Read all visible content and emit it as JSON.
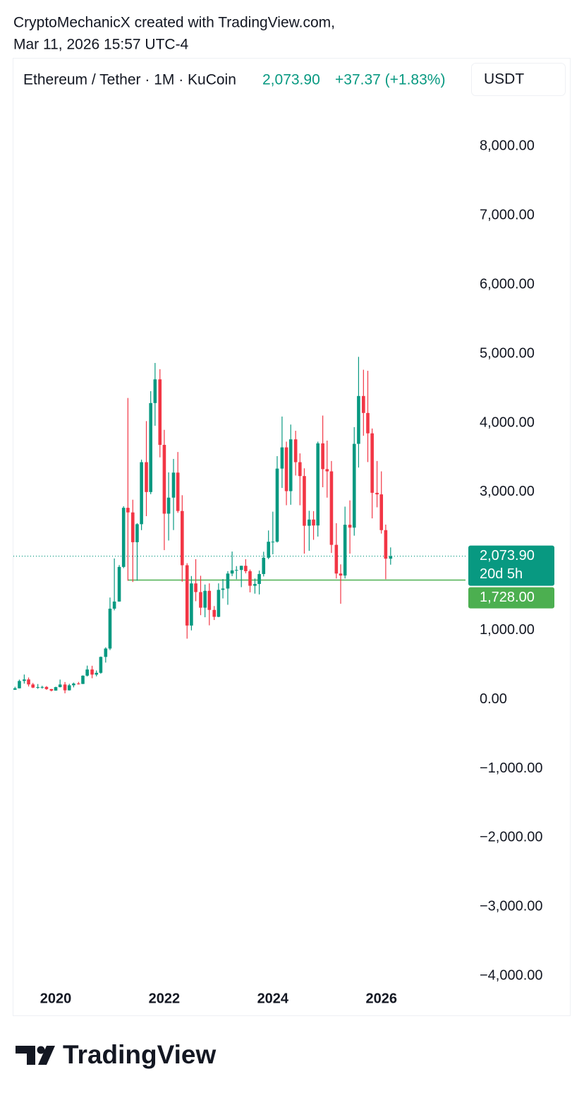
{
  "chart_data": {
    "type": "candlestick",
    "title": "CryptoMechanicX created with TradingView.com,",
    "subtitle": "Mar 11, 2026 15:57 UTC-4",
    "symbol": "Ethereum / Tether · 1M · KuCoin",
    "change": "+37.37 (+1.83%)",
    "currency": "USDT",
    "brand": "TradingView",
    "up_color": "#089981",
    "down_color": "#f23645",
    "grid": false,
    "xlim": [
      2019.22,
      2027.55
    ],
    "xticks": [
      2020,
      2022,
      2024,
      2026
    ],
    "ylim": [
      -4130,
      9250
    ],
    "yticks": [
      {
        "value": -4000,
        "label": "−4,000.00"
      },
      {
        "value": -3000,
        "label": "−3,000.00"
      },
      {
        "value": -2000,
        "label": "−2,000.00"
      },
      {
        "value": -1000,
        "label": "−1,000.00"
      },
      {
        "value": 0,
        "label": "0.00"
      },
      {
        "value": 1000,
        "label": "1,000.00"
      },
      {
        "value": 2000,
        "label": "2,000.00"
      },
      {
        "value": 3000,
        "label": "3,000.00"
      },
      {
        "value": 4000,
        "label": "4,000.00"
      },
      {
        "value": 5000,
        "label": "5,000.00"
      },
      {
        "value": 6000,
        "label": "6,000.00"
      },
      {
        "value": 7000,
        "label": "7,000.00"
      },
      {
        "value": 8000,
        "label": "8,000.00"
      }
    ],
    "price_line": {
      "value": 2073.9,
      "label": "2,073.90",
      "countdown": "20d 5h",
      "color": "#089981"
    },
    "level_line": {
      "value": 1728,
      "label": "1,728.00",
      "from_x": 2021.33,
      "color": "#4caf50"
    },
    "x": [
      2019.25,
      2019.33,
      2019.42,
      2019.5,
      2019.58,
      2019.67,
      2019.75,
      2019.83,
      2019.92,
      2020,
      2020.08,
      2020.17,
      2020.25,
      2020.33,
      2020.42,
      2020.5,
      2020.58,
      2020.67,
      2020.75,
      2020.83,
      2020.92,
      2021,
      2021.08,
      2021.17,
      2021.25,
      2021.33,
      2021.42,
      2021.5,
      2021.58,
      2021.67,
      2021.75,
      2021.83,
      2021.92,
      2022,
      2022.08,
      2022.17,
      2022.25,
      2022.33,
      2022.42,
      2022.5,
      2022.58,
      2022.67,
      2022.75,
      2022.83,
      2022.92,
      2023,
      2023.08,
      2023.17,
      2023.25,
      2023.33,
      2023.42,
      2023.5,
      2023.58,
      2023.67,
      2023.75,
      2023.83,
      2023.92,
      2024,
      2024.08,
      2024.17,
      2024.25,
      2024.33,
      2024.42,
      2024.5,
      2024.58,
      2024.67,
      2024.75,
      2024.83,
      2024.92,
      2025,
      2025.08,
      2025.17,
      2025.25,
      2025.33,
      2025.42,
      2025.5,
      2025.58,
      2025.67,
      2025.75,
      2025.83,
      2025.92,
      2026,
      2026.08,
      2026.17
    ],
    "open": [
      141,
      162,
      268,
      290,
      218,
      172,
      180,
      182,
      151,
      129,
      179,
      217,
      133,
      206,
      231,
      225,
      345,
      434,
      360,
      386,
      616,
      737,
      1314,
      1417,
      1918,
      2773,
      2706,
      2275,
      2536,
      3433,
      3001,
      4288,
      4631,
      3683,
      2688,
      2920,
      3282,
      2727,
      1942,
      1070,
      1679,
      1554,
      1328,
      1572,
      1296,
      1196,
      1586,
      1605,
      1822,
      1868,
      1874,
      1934,
      1856,
      1645,
      1671,
      1815,
      2051,
      2282,
      2283,
      3340,
      3647,
      3014,
      3763,
      3433,
      3232,
      2513,
      2603,
      2517,
      3705,
      3332,
      3300,
      2237,
      1822,
      1793,
      2528,
      2486,
      3698,
      4390,
      4145,
      3850,
      2990,
      2967,
      2450,
      2037
    ],
    "high": [
      184,
      288,
      361,
      318,
      239,
      224,
      198,
      194,
      153,
      185,
      288,
      253,
      227,
      245,
      254,
      349,
      490,
      488,
      420,
      622,
      755,
      1475,
      2040,
      1945,
      2796,
      4362,
      2890,
      2550,
      3470,
      4027,
      4460,
      4868,
      4778,
      3900,
      3285,
      3480,
      3580,
      2955,
      1972,
      1786,
      2030,
      1790,
      1663,
      1680,
      1352,
      1680,
      1743,
      1857,
      2140,
      1930,
      1935,
      2030,
      1880,
      1750,
      1865,
      2137,
      2445,
      2717,
      3520,
      4093,
      3730,
      3977,
      3887,
      3560,
      3344,
      2730,
      2725,
      3730,
      4107,
      3745,
      3450,
      2550,
      1955,
      2790,
      2880,
      3940,
      4956,
      4770,
      4755,
      3920,
      3450,
      3300,
      2530,
      2200
    ],
    "low": [
      140,
      160,
      230,
      188,
      165,
      154,
      157,
      140,
      117,
      127,
      176,
      90,
      130,
      176,
      216,
      224,
      333,
      308,
      335,
      372,
      534,
      715,
      1290,
      1415,
      1900,
      1718,
      1700,
      1718,
      2450,
      2652,
      2970,
      3960,
      3503,
      2160,
      2300,
      2451,
      2700,
      1704,
      880,
      1000,
      1422,
      1220,
      1190,
      1073,
      1150,
      1191,
      1462,
      1370,
      1785,
      1740,
      1625,
      1825,
      1550,
      1531,
      1520,
      1780,
      2030,
      2100,
      2270,
      3060,
      2810,
      2817,
      3240,
      2810,
      2110,
      2150,
      2310,
      2357,
      3070,
      2920,
      2120,
      1750,
      1385,
      1750,
      2110,
      2370,
      3355,
      3815,
      3435,
      2620,
      2780,
      2400,
      1740,
      1950
    ],
    "close": [
      162,
      268,
      290,
      218,
      172,
      180,
      182,
      151,
      129,
      179,
      217,
      133,
      206,
      231,
      225,
      345,
      434,
      360,
      386,
      616,
      737,
      1314,
      1417,
      1918,
      2773,
      2706,
      2275,
      2536,
      3433,
      3001,
      4288,
      4631,
      3683,
      2688,
      2920,
      3282,
      2727,
      1942,
      1070,
      1679,
      1554,
      1328,
      1572,
      1296,
      1196,
      1586,
      1605,
      1822,
      1868,
      1874,
      1934,
      1856,
      1645,
      1671,
      1815,
      2051,
      2282,
      2283,
      3340,
      3647,
      3014,
      3763,
      3433,
      3232,
      2513,
      2603,
      2517,
      3705,
      3332,
      3300,
      2237,
      1822,
      1793,
      2528,
      2486,
      3698,
      4390,
      4145,
      3850,
      2990,
      2967,
      2450,
      2037,
      2073.9
    ]
  }
}
